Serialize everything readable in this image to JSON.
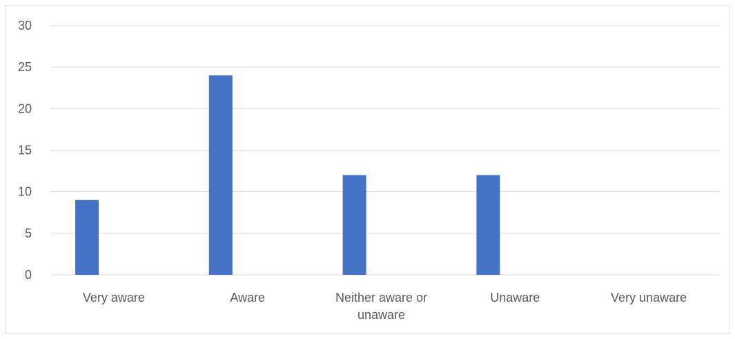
{
  "chart_data": {
    "type": "bar",
    "title": "",
    "xlabel": "",
    "ylabel": "",
    "categories": [
      [
        "Very aware"
      ],
      [
        "Aware"
      ],
      [
        "Neither aware or",
        "unaware"
      ],
      [
        "Unaware"
      ],
      [
        "Very unaware"
      ]
    ],
    "values": [
      9,
      24,
      12,
      12,
      0
    ],
    "ylim": [
      0,
      30
    ],
    "yticks": [
      0,
      5,
      10,
      15,
      20,
      25,
      30
    ],
    "grid": true,
    "legend": "none",
    "colors": {
      "bar": "#4472c4",
      "grid": "#d9d9d9",
      "axis": "#d9d9d9",
      "text": "#595959"
    }
  }
}
